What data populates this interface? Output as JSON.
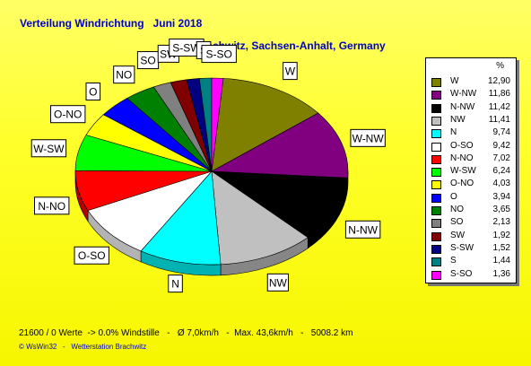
{
  "title": "Verteilung Windrichtung   Juni 2018",
  "subtitle": "Brachwitz, Sachsen-Anhalt, Germany",
  "stats": "21600 / 0 Werte  -> 0.0% Windstille   -   Ø 7,0km/h   -  Max. 43,6km/h   -   5008.2 km",
  "copyright": "© WsWin32   -   Wetterstation Brachwitz",
  "legend_header": "%",
  "chart_data": {
    "type": "pie",
    "slices": [
      {
        "label": "W",
        "value": 12.9,
        "value_text": "12,90",
        "color": "#808000"
      },
      {
        "label": "W-NW",
        "value": 11.86,
        "value_text": "11,86",
        "color": "#800080"
      },
      {
        "label": "N-NW",
        "value": 11.42,
        "value_text": "11,42",
        "color": "#000000"
      },
      {
        "label": "NW",
        "value": 11.41,
        "value_text": "11,41",
        "color": "#c0c0c0"
      },
      {
        "label": "N",
        "value": 9.74,
        "value_text": "9,74",
        "color": "#00ffff"
      },
      {
        "label": "O-SO",
        "value": 9.42,
        "value_text": "9,42",
        "color": "#ffffff"
      },
      {
        "label": "N-NO",
        "value": 7.02,
        "value_text": "7,02",
        "color": "#ff0000"
      },
      {
        "label": "W-SW",
        "value": 6.24,
        "value_text": "6,24",
        "color": "#00ff00"
      },
      {
        "label": "O-NO",
        "value": 4.03,
        "value_text": "4,03",
        "color": "#ffff00"
      },
      {
        "label": "O",
        "value": 3.94,
        "value_text": "3,94",
        "color": "#0000ff"
      },
      {
        "label": "NO",
        "value": 3.65,
        "value_text": "3,65",
        "color": "#008000"
      },
      {
        "label": "SO",
        "value": 2.13,
        "value_text": "2,13",
        "color": "#808080"
      },
      {
        "label": "SW",
        "value": 1.92,
        "value_text": "1,92",
        "color": "#800000"
      },
      {
        "label": "S-SW",
        "value": 1.52,
        "value_text": "1,52",
        "color": "#000080"
      },
      {
        "label": "S",
        "value": 1.44,
        "value_text": "1,44",
        "color": "#008080"
      },
      {
        "label": "S-SO",
        "value": 1.36,
        "value_text": "1,36",
        "color": "#ff00ff"
      }
    ]
  }
}
